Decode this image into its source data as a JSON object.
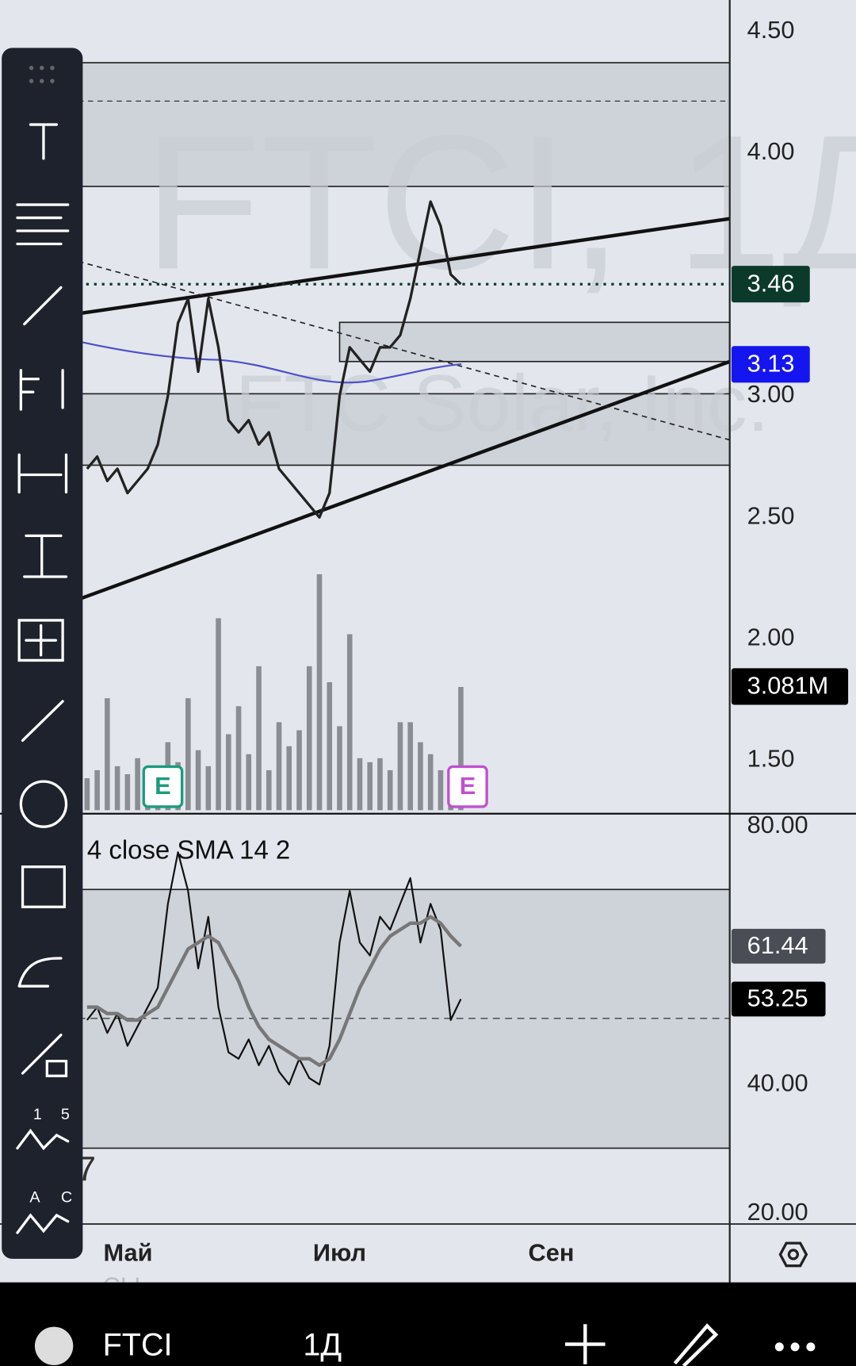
{
  "watermark": {
    "symbol": "FTCI, 1Д",
    "name": "FTC Solar, Inc."
  },
  "chart_data": [
    {
      "type": "line",
      "color": "#222222",
      "ylim": [
        1.28,
        4.63
      ],
      "values": [
        2.7,
        2.75,
        2.65,
        2.7,
        2.6,
        2.65,
        2.7,
        2.8,
        3.0,
        3.3,
        3.4,
        3.1,
        3.4,
        3.2,
        2.9,
        2.85,
        2.9,
        2.8,
        2.85,
        2.7,
        2.65,
        2.6,
        2.55,
        2.5,
        2.6,
        3.0,
        3.2,
        3.15,
        3.1,
        3.2,
        3.2,
        3.25,
        3.4,
        3.6,
        3.8,
        3.7,
        3.5,
        3.46
      ],
      "yticks": [
        {
          "value": 4.5,
          "label": "4.50"
        },
        {
          "value": 4,
          "label": "4.00"
        },
        {
          "value": 3,
          "label": "3.00"
        },
        {
          "value": 2.5,
          "label": "2.50"
        },
        {
          "value": 2,
          "label": "2.00"
        },
        {
          "value": 1.5,
          "label": "1.50"
        }
      ],
      "badges": [
        3.46,
        3.13
      ]
    },
    {
      "type": "bar",
      "color": "#7a7d82",
      "ylim": [
        0,
        6.6
      ],
      "values": [
        0.8,
        1.0,
        2.8,
        1.1,
        0.9,
        1.3,
        0.7,
        1.0,
        1.7,
        1.2,
        2.8,
        1.5,
        1.1,
        4.8,
        1.9,
        2.6,
        1.4,
        3.6,
        1.0,
        2.2,
        1.6,
        2.0,
        3.6,
        5.9,
        3.2,
        2.1,
        4.4,
        1.3,
        1.2,
        1.3,
        1.0,
        2.2,
        2.2,
        1.7,
        1.4,
        1.0,
        0.6,
        3.081
      ],
      "badge": {
        "value": 3.081,
        "label": "3.081M"
      },
      "events": [
        "E",
        "E"
      ]
    },
    {
      "type": "line",
      "title": "4 close SMA 14 2",
      "ylim": [
        18.4,
        81.7
      ],
      "yticks": [
        {
          "value": 80,
          "label": "80.00"
        },
        {
          "value": 40,
          "label": "40.00"
        },
        {
          "value": 20,
          "label": "20.00"
        }
      ],
      "series": [
        {
          "color": "#111111",
          "values": [
            50,
            52,
            48,
            51,
            46,
            49,
            52,
            55,
            68,
            76,
            70,
            58,
            66,
            52,
            45,
            44,
            47,
            43,
            46,
            42,
            40,
            44,
            41,
            40,
            46,
            62,
            70,
            62,
            60,
            66,
            64,
            68,
            72,
            62,
            68,
            64,
            50,
            53.25
          ]
        },
        {
          "color": "#777777",
          "values": [
            52,
            52,
            51,
            51,
            50,
            50,
            51,
            52,
            55,
            58,
            61,
            62,
            63,
            62,
            59,
            56,
            52,
            49,
            47,
            46,
            45,
            44,
            44,
            43,
            44,
            47,
            51,
            55,
            58,
            61,
            63,
            64,
            65,
            65,
            66,
            65,
            63,
            61.44
          ]
        }
      ]
    }
  ],
  "time_axis": [
    "Май",
    "Июл",
    "Сен"
  ],
  "fragments": [
    "CLI",
    "7"
  ],
  "bottom_bar": {
    "symbol": "FTCI",
    "interval": "1Д"
  }
}
